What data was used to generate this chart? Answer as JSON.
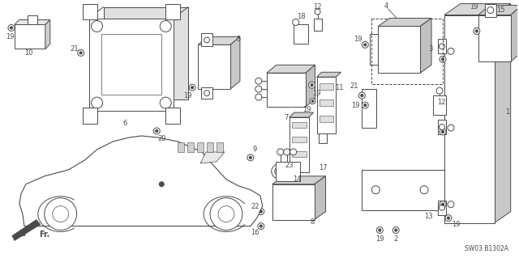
{
  "background_color": "#ffffff",
  "line_color": "#4a4a4a",
  "fig_width": 6.4,
  "fig_height": 3.19,
  "diagram_code": "SW03 B1302A"
}
